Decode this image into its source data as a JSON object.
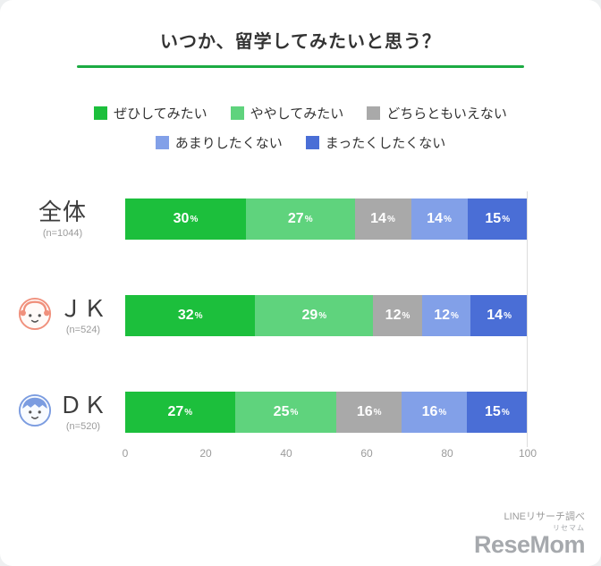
{
  "title": "いつか、留学してみたいと思う？",
  "title_underline_color": "#1cab43",
  "legend": [
    {
      "label": "ぜひしてみたい",
      "color": "#1cbf3c"
    },
    {
      "label": "ややしてみたい",
      "color": "#5fd37d"
    },
    {
      "label": "どちらともいえない",
      "color": "#a9a9a9"
    },
    {
      "label": "あまりしたくない",
      "color": "#82a0e8"
    },
    {
      "label": "まったくしたくない",
      "color": "#4a6ed6"
    }
  ],
  "chart_data": {
    "type": "bar",
    "orientation": "horizontal",
    "stacked": true,
    "categories": [
      "全体",
      "ＪＫ",
      "ＤＫ"
    ],
    "category_notes": [
      "(n=1044)",
      "(n=524)",
      "(n=520)"
    ],
    "avatars": [
      null,
      "girl",
      "boy"
    ],
    "series": [
      {
        "name": "ぜひしてみたい",
        "color": "#1cbf3c",
        "values": [
          30,
          32,
          27
        ]
      },
      {
        "name": "ややしてみたい",
        "color": "#5fd37d",
        "values": [
          27,
          29,
          25
        ]
      },
      {
        "name": "どちらともいえない",
        "color": "#a9a9a9",
        "values": [
          14,
          12,
          16
        ]
      },
      {
        "name": "あまりしたくない",
        "color": "#82a0e8",
        "values": [
          14,
          12,
          16
        ]
      },
      {
        "name": "まったくしたくない",
        "color": "#4a6ed6",
        "values": [
          15,
          14,
          15
        ]
      }
    ],
    "xlim": [
      0,
      100
    ],
    "x_ticks": [
      0,
      20,
      40,
      60,
      80,
      100
    ],
    "value_suffix": "%",
    "legend_position": "top",
    "grid": "right-edge-only"
  },
  "footer": {
    "source": "LINEリサーチ調べ",
    "logo": "ReseMom",
    "logo_sub": "リセマム"
  }
}
